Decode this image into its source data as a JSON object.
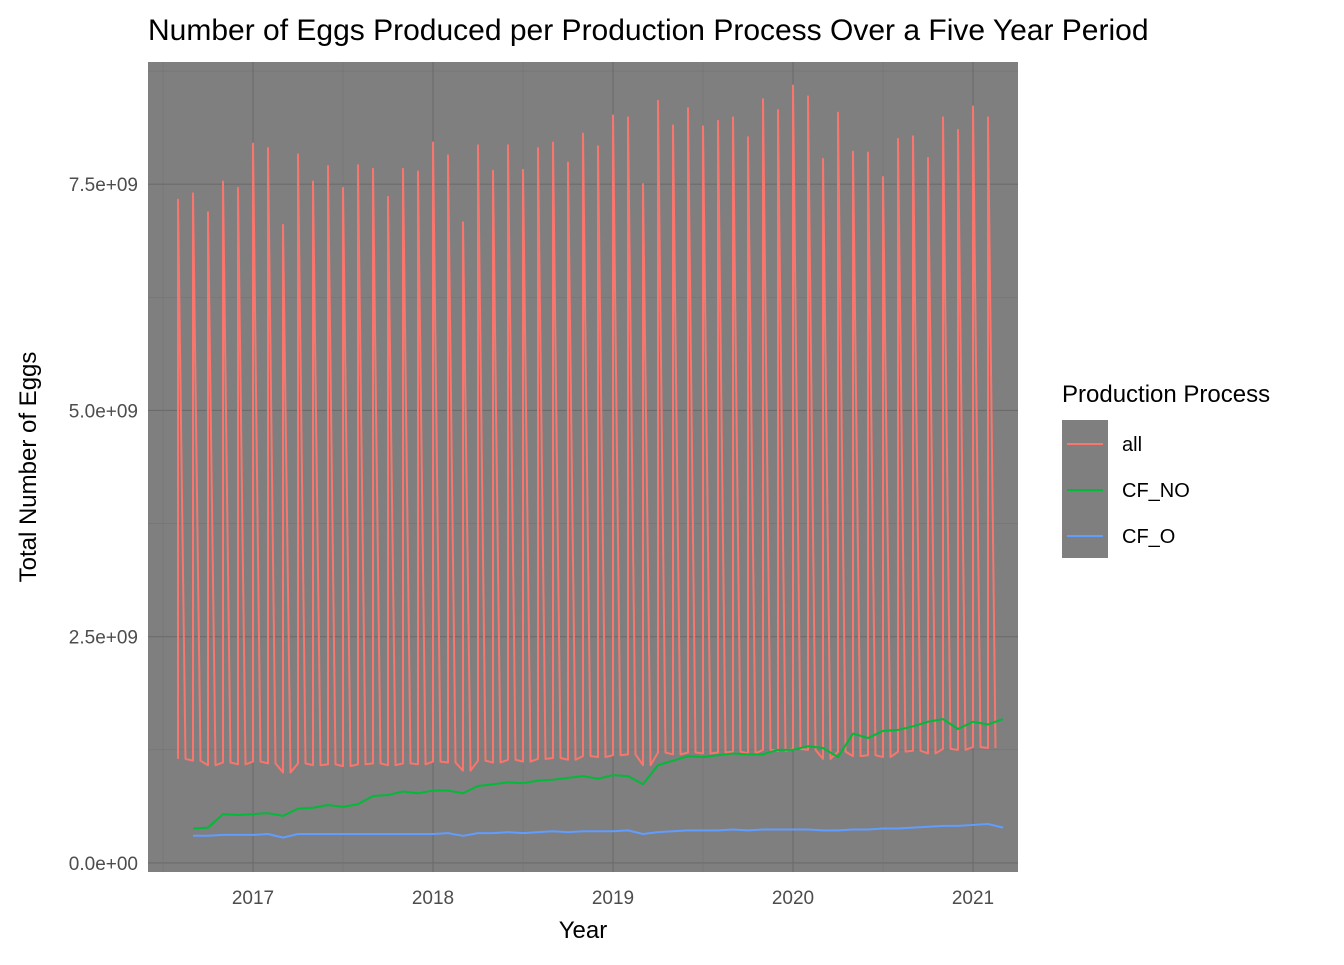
{
  "chart_data": {
    "type": "line",
    "title": "Number of Eggs Produced per Production Process Over a Five Year Period",
    "xlabel": "Year",
    "ylabel": "Total Number of Eggs",
    "x_ticks": [
      "2017",
      "2018",
      "2019",
      "2020",
      "2021"
    ],
    "y_ticks": [
      "0.0e+00",
      "2.5e+09",
      "5.0e+09",
      "7.5e+09"
    ],
    "xlim": [
      "2016-06-01",
      "2021-03-31"
    ],
    "ylim": [
      -100000000,
      8850000000
    ],
    "grid": true,
    "panel_color": "#7f7f7f",
    "legend": {
      "title": "Production Process",
      "position": "right",
      "entries": [
        {
          "label": "all",
          "color": "#F8766D"
        },
        {
          "label": "CF_NO",
          "color": "#00BA38"
        },
        {
          "label": "CF_O",
          "color": "#619CFF"
        }
      ]
    },
    "series": [
      {
        "name": "all",
        "color": "#F8766D",
        "x": [
          "2016-08",
          "2016-09",
          "2016-10",
          "2016-11",
          "2016-12",
          "2017-01",
          "2017-02",
          "2017-03",
          "2017-04",
          "2017-05",
          "2017-06",
          "2017-07",
          "2017-08",
          "2017-09",
          "2017-10",
          "2017-11",
          "2017-12",
          "2018-01",
          "2018-02",
          "2018-03",
          "2018-04",
          "2018-05",
          "2018-06",
          "2018-07",
          "2018-08",
          "2018-09",
          "2018-10",
          "2018-11",
          "2018-12",
          "2019-01",
          "2019-02",
          "2019-03",
          "2019-04",
          "2019-05",
          "2019-06",
          "2019-07",
          "2019-08",
          "2019-09",
          "2019-10",
          "2019-11",
          "2019-12",
          "2020-01",
          "2020-02",
          "2020-03",
          "2020-04",
          "2020-05",
          "2020-06",
          "2020-07",
          "2020-08",
          "2020-09",
          "2020-10",
          "2020-11",
          "2020-12",
          "2021-01",
          "2021-02"
        ],
        "high": [
          7330000000,
          7400000000,
          7190000000,
          7530000000,
          7460000000,
          7950000000,
          7900000000,
          7050000000,
          7830000000,
          7530000000,
          7700000000,
          7460000000,
          7710000000,
          7670000000,
          7360000000,
          7670000000,
          7640000000,
          7960000000,
          7820000000,
          7080000000,
          7930000000,
          7650000000,
          7930000000,
          7660000000,
          7900000000,
          7960000000,
          7740000000,
          8060000000,
          7920000000,
          8260000000,
          8240000000,
          7500000000,
          8420000000,
          8150000000,
          8340000000,
          8140000000,
          8200000000,
          8240000000,
          8020000000,
          8440000000,
          8320000000,
          8590000000,
          8470000000,
          7780000000,
          8290000000,
          7860000000,
          7850000000,
          7580000000,
          8000000000,
          8030000000,
          7790000000,
          8240000000,
          8100000000,
          8360000000,
          8240000000
        ],
        "low": [
          1150000000,
          1130000000,
          1080000000,
          1110000000,
          1090000000,
          1120000000,
          1100000000,
          1000000000,
          1100000000,
          1080000000,
          1090000000,
          1070000000,
          1090000000,
          1100000000,
          1080000000,
          1100000000,
          1090000000,
          1120000000,
          1110000000,
          1020000000,
          1130000000,
          1110000000,
          1140000000,
          1120000000,
          1150000000,
          1160000000,
          1140000000,
          1180000000,
          1170000000,
          1190000000,
          1200000000,
          1080000000,
          1220000000,
          1200000000,
          1220000000,
          1210000000,
          1220000000,
          1230000000,
          1210000000,
          1250000000,
          1240000000,
          1260000000,
          1250000000,
          1150000000,
          1230000000,
          1180000000,
          1190000000,
          1170000000,
          1230000000,
          1240000000,
          1210000000,
          1260000000,
          1250000000,
          1280000000,
          1270000000
        ]
      },
      {
        "name": "CF_NO",
        "color": "#00BA38",
        "x": [
          "2016-09",
          "2016-10",
          "2016-11",
          "2016-12",
          "2017-01",
          "2017-02",
          "2017-03",
          "2017-04",
          "2017-05",
          "2017-06",
          "2017-07",
          "2017-08",
          "2017-09",
          "2017-10",
          "2017-11",
          "2017-12",
          "2018-01",
          "2018-02",
          "2018-03",
          "2018-04",
          "2018-05",
          "2018-06",
          "2018-07",
          "2018-08",
          "2018-09",
          "2018-10",
          "2018-11",
          "2018-12",
          "2019-01",
          "2019-02",
          "2019-03",
          "2019-04",
          "2019-05",
          "2019-06",
          "2019-07",
          "2019-08",
          "2019-09",
          "2019-10",
          "2019-11",
          "2019-12",
          "2020-01",
          "2020-02",
          "2020-03",
          "2020-04",
          "2020-05",
          "2020-06",
          "2020-07",
          "2020-08",
          "2020-09",
          "2020-10",
          "2020-11",
          "2020-12",
          "2021-01",
          "2021-02",
          "2021-03"
        ],
        "values": [
          380000000,
          390000000,
          540000000,
          530000000,
          540000000,
          550000000,
          520000000,
          600000000,
          610000000,
          640000000,
          620000000,
          650000000,
          740000000,
          750000000,
          790000000,
          770000000,
          800000000,
          800000000,
          770000000,
          850000000,
          870000000,
          890000000,
          880000000,
          910000000,
          920000000,
          940000000,
          960000000,
          930000000,
          970000000,
          960000000,
          870000000,
          1080000000,
          1130000000,
          1180000000,
          1170000000,
          1190000000,
          1210000000,
          1200000000,
          1200000000,
          1250000000,
          1250000000,
          1290000000,
          1270000000,
          1170000000,
          1430000000,
          1380000000,
          1460000000,
          1470000000,
          1510000000,
          1560000000,
          1590000000,
          1480000000,
          1560000000,
          1530000000,
          1590000000
        ]
      },
      {
        "name": "CF_O",
        "color": "#619CFF",
        "x": [
          "2016-09",
          "2016-10",
          "2016-11",
          "2016-12",
          "2017-01",
          "2017-02",
          "2017-03",
          "2017-04",
          "2017-05",
          "2017-06",
          "2017-07",
          "2017-08",
          "2017-09",
          "2017-10",
          "2017-11",
          "2017-12",
          "2018-01",
          "2018-02",
          "2018-03",
          "2018-04",
          "2018-05",
          "2018-06",
          "2018-07",
          "2018-08",
          "2018-09",
          "2018-10",
          "2018-11",
          "2018-12",
          "2019-01",
          "2019-02",
          "2019-03",
          "2019-04",
          "2019-05",
          "2019-06",
          "2019-07",
          "2019-08",
          "2019-09",
          "2019-10",
          "2019-11",
          "2019-12",
          "2020-01",
          "2020-02",
          "2020-03",
          "2020-04",
          "2020-05",
          "2020-06",
          "2020-07",
          "2020-08",
          "2020-09",
          "2020-10",
          "2020-11",
          "2020-12",
          "2021-01",
          "2021-02",
          "2021-03"
        ],
        "values": [
          300000000,
          300000000,
          310000000,
          310000000,
          310000000,
          320000000,
          280000000,
          320000000,
          320000000,
          320000000,
          320000000,
          320000000,
          320000000,
          320000000,
          320000000,
          320000000,
          320000000,
          330000000,
          300000000,
          330000000,
          330000000,
          340000000,
          330000000,
          340000000,
          350000000,
          340000000,
          350000000,
          350000000,
          350000000,
          360000000,
          320000000,
          340000000,
          350000000,
          360000000,
          360000000,
          360000000,
          370000000,
          360000000,
          370000000,
          370000000,
          370000000,
          370000000,
          360000000,
          360000000,
          370000000,
          370000000,
          380000000,
          380000000,
          390000000,
          400000000,
          410000000,
          410000000,
          420000000,
          430000000,
          390000000
        ]
      }
    ]
  }
}
